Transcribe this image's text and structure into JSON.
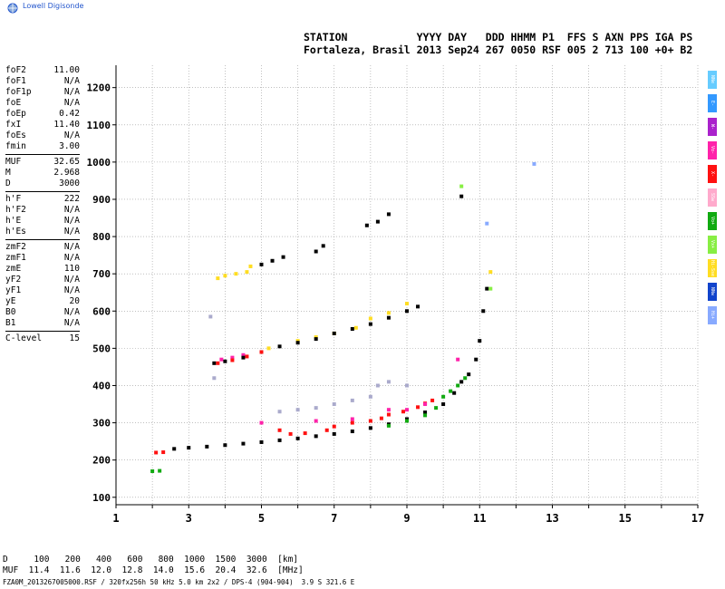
{
  "brand": "Lowell Digisonde",
  "header": {
    "line1": "STATION           YYYY DAY   DDD HHMM P1  FFS S AXN PPS IGA PS",
    "line2": "Fortaleza, Brasil 2013 Sep24 267 0050 RSF 005 2 713 100 +0+ B2"
  },
  "params": [
    [
      [
        "foF2",
        "11.00"
      ],
      [
        "foF1",
        "N/A"
      ],
      [
        "foF1p",
        "N/A"
      ],
      [
        "foE",
        "N/A"
      ],
      [
        "foEp",
        "0.42"
      ],
      [
        "fxI",
        "11.40"
      ],
      [
        "foEs",
        "N/A"
      ],
      [
        "fmin",
        "3.00"
      ]
    ],
    [
      [
        "MUF",
        "32.65"
      ],
      [
        "M",
        "2.968"
      ],
      [
        "D",
        "3000"
      ]
    ],
    [
      [
        "h'F",
        "222"
      ],
      [
        "h'F2",
        "N/A"
      ],
      [
        "h'E",
        "N/A"
      ],
      [
        "h'Es",
        "N/A"
      ]
    ],
    [
      [
        "zmF2",
        "N/A"
      ],
      [
        "zmF1",
        "N/A"
      ],
      [
        "zmE",
        "110"
      ],
      [
        "yF2",
        "N/A"
      ],
      [
        "yF1",
        "N/A"
      ],
      [
        "yE",
        "20"
      ],
      [
        "B0",
        "N/A"
      ],
      [
        "B1",
        "N/A"
      ]
    ],
    [
      [
        "C-level",
        "15"
      ]
    ]
  ],
  "legend": [
    {
      "label": "NNe",
      "color": "#66ccff"
    },
    {
      "label": "E-",
      "color": "#3399ff"
    },
    {
      "label": "W-",
      "color": "#aa22cc"
    },
    {
      "label": "Vo-",
      "color": "#ff22aa"
    },
    {
      "label": "X-",
      "color": "#ff1111"
    },
    {
      "label": "SSw",
      "color": "#ffaacc"
    },
    {
      "label": "Vo+",
      "color": "#11aa11"
    },
    {
      "label": "Vx+",
      "color": "#88ee44"
    },
    {
      "label": "Hi-Sse",
      "color": "#ffdd22"
    },
    {
      "label": "NNw",
      "color": "#1144cc"
    },
    {
      "label": "Hi+",
      "color": "#88aaff"
    }
  ],
  "footer": {
    "line1": "D     100   200   400   600   800  1000  1500  3000  [km]",
    "line2": "MUF  11.4  11.6  12.0  12.8  14.0  15.6  20.4  32.6  [MHz]",
    "line3": "FZA0M_2013267005000.RSF / 320fx256h 50 kHz 5.0 km 2x2 / DPS-4 (904-904)  3.9 S 321.6 E"
  },
  "chart_data": {
    "type": "scatter",
    "title": "",
    "xlabel": "",
    "ylabel": "",
    "xlim": [
      1,
      17
    ],
    "ylim": [
      80,
      1260
    ],
    "x_ticks": [
      1,
      3,
      5,
      7,
      9,
      11,
      13,
      15,
      17
    ],
    "y_ticks": [
      100,
      200,
      300,
      400,
      500,
      600,
      700,
      800,
      900,
      1000,
      1100,
      1200
    ],
    "grid": "dotted",
    "series": [
      {
        "color": "#000000",
        "points": [
          [
            2.6,
            230
          ],
          [
            3.0,
            233
          ],
          [
            3.5,
            236
          ],
          [
            4.0,
            240
          ],
          [
            4.5,
            244
          ],
          [
            5.0,
            248
          ],
          [
            5.5,
            253
          ],
          [
            6.0,
            258
          ],
          [
            6.5,
            264
          ],
          [
            7.0,
            270
          ],
          [
            7.5,
            277
          ],
          [
            8.0,
            286
          ],
          [
            8.5,
            296
          ],
          [
            9.0,
            310
          ],
          [
            9.5,
            328
          ],
          [
            10.0,
            350
          ],
          [
            10.3,
            380
          ],
          [
            10.5,
            410
          ],
          [
            10.7,
            430
          ],
          [
            10.9,
            470
          ],
          [
            11.0,
            520
          ],
          [
            11.1,
            600
          ],
          [
            11.2,
            660
          ]
        ]
      },
      {
        "color": "#ff1111",
        "points": [
          [
            2.1,
            220
          ],
          [
            2.3,
            221
          ],
          [
            5.5,
            280
          ],
          [
            5.8,
            270
          ],
          [
            6.2,
            272
          ],
          [
            6.8,
            280
          ],
          [
            7.0,
            290
          ],
          [
            7.5,
            300
          ],
          [
            8.0,
            305
          ],
          [
            8.3,
            312
          ],
          [
            8.5,
            322
          ],
          [
            8.9,
            330
          ],
          [
            9.3,
            342
          ],
          [
            9.5,
            352
          ],
          [
            9.7,
            360
          ]
        ]
      },
      {
        "color": "#11aa11",
        "points": [
          [
            2.0,
            170
          ],
          [
            2.2,
            171
          ],
          [
            8.5,
            292
          ],
          [
            9.0,
            305
          ],
          [
            9.5,
            320
          ],
          [
            9.8,
            340
          ],
          [
            10.0,
            370
          ],
          [
            10.2,
            385
          ],
          [
            10.4,
            400
          ],
          [
            10.6,
            420
          ]
        ]
      },
      {
        "color": "#ff22aa",
        "points": [
          [
            5.0,
            300
          ],
          [
            6.5,
            305
          ],
          [
            7.5,
            310
          ],
          [
            8.5,
            335
          ],
          [
            9.0,
            335
          ],
          [
            9.5,
            350
          ],
          [
            10.4,
            470
          ],
          [
            3.9,
            470
          ],
          [
            4.2,
            475
          ],
          [
            4.5,
            482
          ]
        ]
      },
      {
        "color": "#ffdd22",
        "points": [
          [
            3.8,
            688
          ],
          [
            4.0,
            695
          ],
          [
            4.3,
            700
          ],
          [
            4.6,
            705
          ],
          [
            4.7,
            720
          ],
          [
            5.2,
            500
          ],
          [
            6.0,
            520
          ],
          [
            6.5,
            530
          ],
          [
            7.0,
            540
          ],
          [
            7.6,
            555
          ],
          [
            8.0,
            580
          ],
          [
            8.5,
            595
          ],
          [
            9.0,
            620
          ],
          [
            11.3,
            705
          ]
        ]
      },
      {
        "color": "#aaaacc",
        "points": [
          [
            5.5,
            330
          ],
          [
            6.0,
            335
          ],
          [
            6.5,
            340
          ],
          [
            7.0,
            350
          ],
          [
            7.5,
            360
          ],
          [
            8.0,
            370
          ],
          [
            8.2,
            400
          ],
          [
            8.5,
            410
          ],
          [
            9.0,
            400
          ],
          [
            3.6,
            585
          ],
          [
            3.7,
            420
          ]
        ]
      },
      {
        "color": "#000000",
        "points": [
          [
            3.7,
            460
          ],
          [
            4.0,
            465
          ],
          [
            4.5,
            475
          ],
          [
            5.0,
            490
          ],
          [
            5.5,
            505
          ],
          [
            6.0,
            515
          ],
          [
            6.5,
            525
          ],
          [
            7.0,
            540
          ],
          [
            7.5,
            552
          ],
          [
            8.0,
            565
          ],
          [
            8.5,
            582
          ],
          [
            9.0,
            600
          ],
          [
            9.3,
            612
          ],
          [
            6.5,
            760
          ],
          [
            6.7,
            775
          ],
          [
            7.9,
            830
          ],
          [
            8.2,
            840
          ],
          [
            8.5,
            860
          ],
          [
            10.5,
            908
          ],
          [
            5.0,
            725
          ],
          [
            5.3,
            735
          ],
          [
            5.6,
            745
          ]
        ]
      },
      {
        "color": "#ff1111",
        "points": [
          [
            3.8,
            460
          ],
          [
            4.2,
            468
          ],
          [
            4.6,
            478
          ],
          [
            5.0,
            490
          ]
        ]
      },
      {
        "color": "#88aaff",
        "points": [
          [
            12.5,
            995
          ],
          [
            11.2,
            835
          ]
        ]
      },
      {
        "color": "#88ee44",
        "points": [
          [
            11.3,
            660
          ],
          [
            10.5,
            935
          ]
        ]
      }
    ]
  }
}
